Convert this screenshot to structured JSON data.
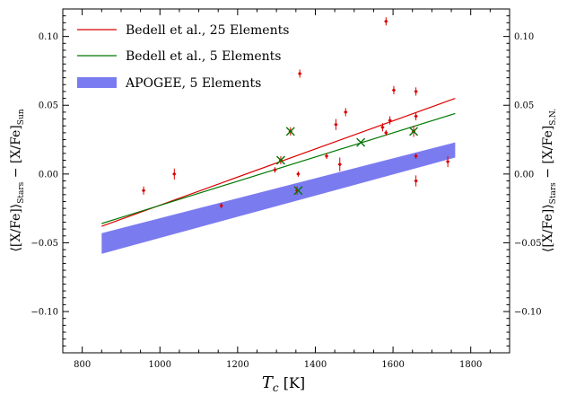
{
  "chart_data": {
    "type": "scatter",
    "xlabel": "T_c [K]",
    "ylabel_left": "⟨[X/Fe]⟩_Stars − [X/Fe]_Sun",
    "ylabel_right": "⟨[X/Fe]⟩_Stars − [X/Fe]_S.N.",
    "xlim": [
      750,
      1900
    ],
    "ylim": [
      -0.13,
      0.12
    ],
    "xticks": [
      800,
      1000,
      1200,
      1400,
      1600,
      1800
    ],
    "yticks": [
      -0.1,
      -0.05,
      0.0,
      0.05,
      0.1
    ],
    "ytick_labels": [
      "−0.10",
      "−0.05",
      "0.00",
      "0.05",
      "0.10"
    ],
    "grid": false,
    "legend_position": "top-left",
    "series": [
      {
        "name": "Bedell et al., 25 Elements",
        "kind": "line",
        "color": "#dd0000",
        "x": [
          850,
          1760
        ],
        "y": [
          -0.038,
          0.055
        ]
      },
      {
        "name": "Bedell et al., 5 Elements",
        "kind": "line",
        "color": "#007700",
        "x": [
          850,
          1760
        ],
        "y": [
          -0.036,
          0.044
        ]
      },
      {
        "name": "APOGEE, 5 Elements",
        "kind": "band",
        "color": "#7b7bf0",
        "x": [
          850,
          1760
        ],
        "y_upper": [
          -0.043,
          0.023
        ],
        "y_lower": [
          -0.058,
          0.012
        ]
      }
    ],
    "points_red": {
      "color": "#dd0000",
      "x": [
        958,
        1037,
        1158,
        1296,
        1311,
        1336,
        1353,
        1356,
        1360,
        1429,
        1453,
        1463,
        1478,
        1573,
        1582,
        1582,
        1592,
        1602,
        1653,
        1659,
        1659,
        1659,
        1659,
        1741
      ],
      "y": [
        -0.012,
        0.0,
        -0.023,
        0.003,
        0.01,
        0.031,
        -0.012,
        0.0,
        0.073,
        0.013,
        0.036,
        0.007,
        0.045,
        0.034,
        0.111,
        0.03,
        0.039,
        0.061,
        0.031,
        0.06,
        0.042,
        0.013,
        -0.005,
        0.009
      ],
      "yerr": [
        0.003,
        0.004,
        0.002,
        0.002,
        0.003,
        0.003,
        0.003,
        0.002,
        0.003,
        0.002,
        0.004,
        0.005,
        0.003,
        0.003,
        0.003,
        0.002,
        0.003,
        0.003,
        0.004,
        0.003,
        0.003,
        0.002,
        0.004,
        0.004
      ]
    },
    "points_green_x": {
      "color": "#007700",
      "x": [
        1311,
        1336,
        1356,
        1517,
        1653
      ],
      "y": [
        0.01,
        0.031,
        -0.012,
        0.023,
        0.031
      ]
    }
  }
}
